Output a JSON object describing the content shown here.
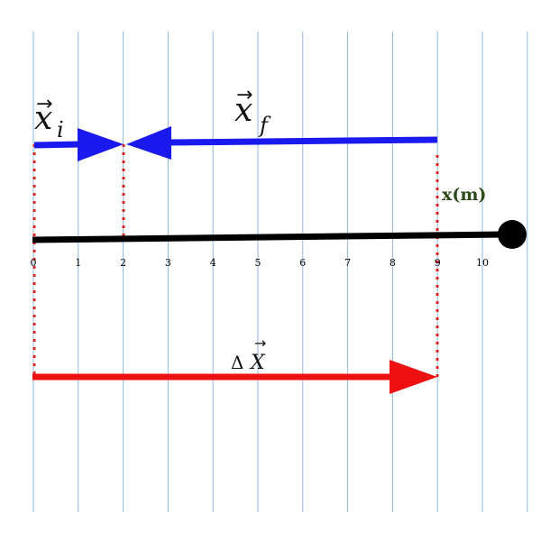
{
  "diagram": {
    "axis_label": "x(m)",
    "tick_labels": [
      "0",
      "1",
      "2",
      "3",
      "4",
      "5",
      "6",
      "7",
      "8",
      "9",
      "10"
    ],
    "initial_position": 0,
    "final_position": 9,
    "start_position": 2,
    "vectors": {
      "x_i": {
        "arrow": "→",
        "base": "x",
        "sub": "i",
        "color": "#1a1aee"
      },
      "x_f": {
        "arrow": "→",
        "base": "x",
        "sub": "f",
        "color": "#1a1aee"
      },
      "delta_x": {
        "prefix": "Δ",
        "arrow": "→",
        "base": "X",
        "color": "#ee1111"
      }
    },
    "colors": {
      "axis": "#000000",
      "grid": "#8fb9dd",
      "guides": "#dd2222",
      "unit_label": "#2e4a1a"
    }
  }
}
